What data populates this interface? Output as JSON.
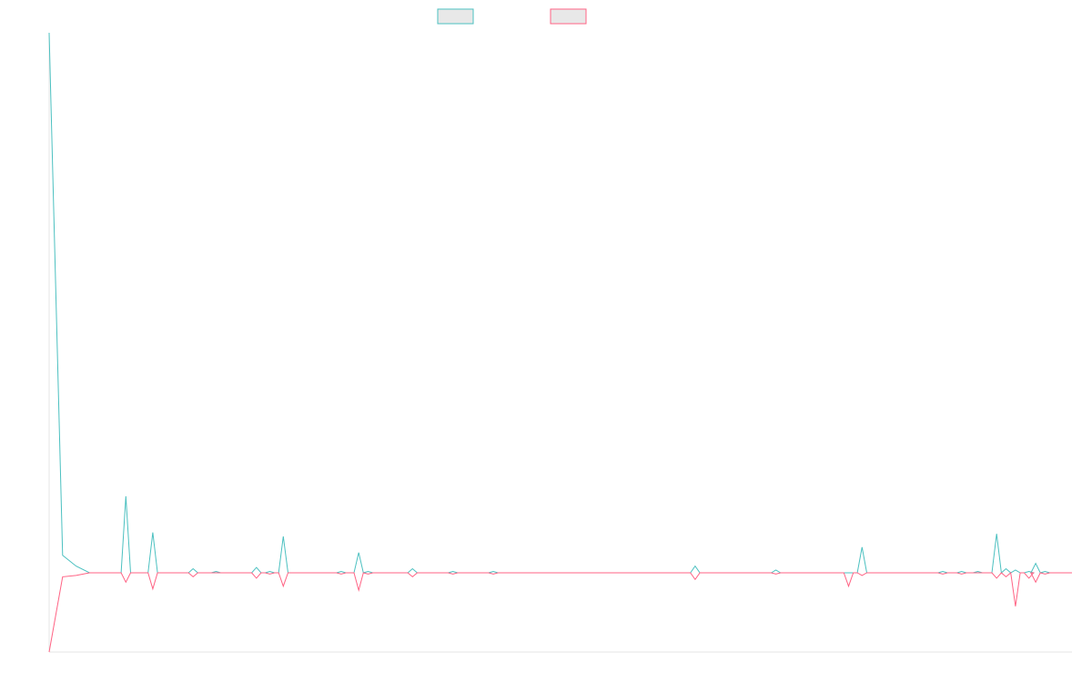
{
  "chart_data": {
    "type": "line",
    "title": "",
    "xlabel": "",
    "ylabel": "",
    "legend_position": "top-center",
    "grid": false,
    "x": [
      0,
      1,
      2,
      3,
      4,
      5,
      6,
      7,
      8,
      9,
      10,
      11,
      12,
      13,
      14,
      15,
      16,
      17,
      18,
      19,
      20,
      21,
      22,
      23,
      24,
      25,
      26,
      27,
      28,
      29,
      30,
      31,
      32,
      33,
      34,
      35,
      36,
      37,
      38,
      39,
      40,
      41,
      42,
      43,
      44,
      45,
      46,
      47,
      48,
      49,
      50,
      51,
      52,
      53,
      54,
      55,
      56,
      57,
      58,
      59,
      60,
      61,
      62,
      63,
      64,
      65,
      66,
      67,
      68,
      69,
      70,
      71,
      72,
      73,
      74,
      75,
      76
    ],
    "xlim": [
      0,
      76
    ],
    "ylim": [
      -59,
      402
    ],
    "series": [
      {
        "name": "",
        "color": "#4bc0c0",
        "fill": "#e8e8e8",
        "values": [
          402,
          13,
          5,
          0,
          0,
          0,
          0,
          0,
          0,
          0,
          0,
          57,
          0,
          0,
          0,
          0,
          30,
          0,
          0,
          0,
          -1,
          0,
          0,
          0,
          0,
          0,
          0,
          0,
          0,
          0,
          0,
          0,
          0,
          0,
          0,
          0,
          0,
          0,
          0,
          0,
          0,
          0,
          0,
          0,
          0,
          0,
          0,
          0,
          0,
          0,
          0,
          0,
          0,
          0,
          0,
          0,
          0,
          0,
          0,
          0,
          0,
          0,
          0,
          0,
          0,
          0,
          0,
          0,
          0,
          0,
          0,
          0,
          0,
          0,
          0,
          0,
          0
        ]
      },
      {
        "name": "",
        "color": "#ff6384",
        "fill": "#e8e8e8",
        "values": [
          -59,
          -3,
          -2,
          0,
          0,
          0,
          0,
          0,
          0,
          0,
          0,
          -7,
          0,
          0,
          0,
          0,
          -12,
          0,
          0,
          0,
          -1,
          0,
          0,
          0,
          0,
          0,
          0,
          0,
          0,
          0,
          0,
          0,
          0,
          0,
          0,
          0,
          0,
          0,
          0,
          0,
          0,
          0,
          0,
          0,
          0,
          0,
          0,
          0,
          0,
          0,
          0,
          0,
          0,
          0,
          0,
          0,
          0,
          0,
          0,
          0,
          0,
          0,
          0,
          0,
          0,
          0,
          0,
          0,
          0,
          0,
          0,
          0,
          0,
          0,
          0,
          0,
          0
        ]
      }
    ],
    "spikes": [
      {
        "x": 5.7,
        "up": 57,
        "down": -7
      },
      {
        "x": 7.7,
        "up": 30,
        "down": -12
      },
      {
        "x": 10.7,
        "up": 3,
        "down": -3
      },
      {
        "x": 12.4,
        "up": 1,
        "down": 0
      },
      {
        "x": 15.4,
        "up": 4,
        "down": -4
      },
      {
        "x": 16.4,
        "up": 1,
        "down": -1
      },
      {
        "x": 17.4,
        "up": 27,
        "down": -10
      },
      {
        "x": 21.7,
        "up": 1,
        "down": -1
      },
      {
        "x": 23.0,
        "up": 15,
        "down": -13
      },
      {
        "x": 23.7,
        "up": 1,
        "down": -1
      },
      {
        "x": 27.0,
        "up": 3,
        "down": -3
      },
      {
        "x": 30.0,
        "up": 1,
        "down": -1
      },
      {
        "x": 33.0,
        "up": 1,
        "down": -1
      },
      {
        "x": 48.0,
        "up": 5,
        "down": -5
      },
      {
        "x": 54.0,
        "up": 2,
        "down": -1
      },
      {
        "x": 59.4,
        "up": 0,
        "down": -10
      },
      {
        "x": 60.4,
        "up": 19,
        "down": -2
      },
      {
        "x": 66.4,
        "up": 1,
        "down": -1
      },
      {
        "x": 67.8,
        "up": 1,
        "down": -1
      },
      {
        "x": 69.0,
        "up": 1,
        "down": 0
      },
      {
        "x": 70.4,
        "up": 29,
        "down": -4
      },
      {
        "x": 71.1,
        "up": 3,
        "down": -3
      },
      {
        "x": 71.8,
        "up": 2,
        "down": -25
      },
      {
        "x": 72.8,
        "up": 1,
        "down": -4
      },
      {
        "x": 73.3,
        "up": 7,
        "down": -7
      },
      {
        "x": 74.0,
        "up": 1,
        "down": -1
      }
    ]
  }
}
